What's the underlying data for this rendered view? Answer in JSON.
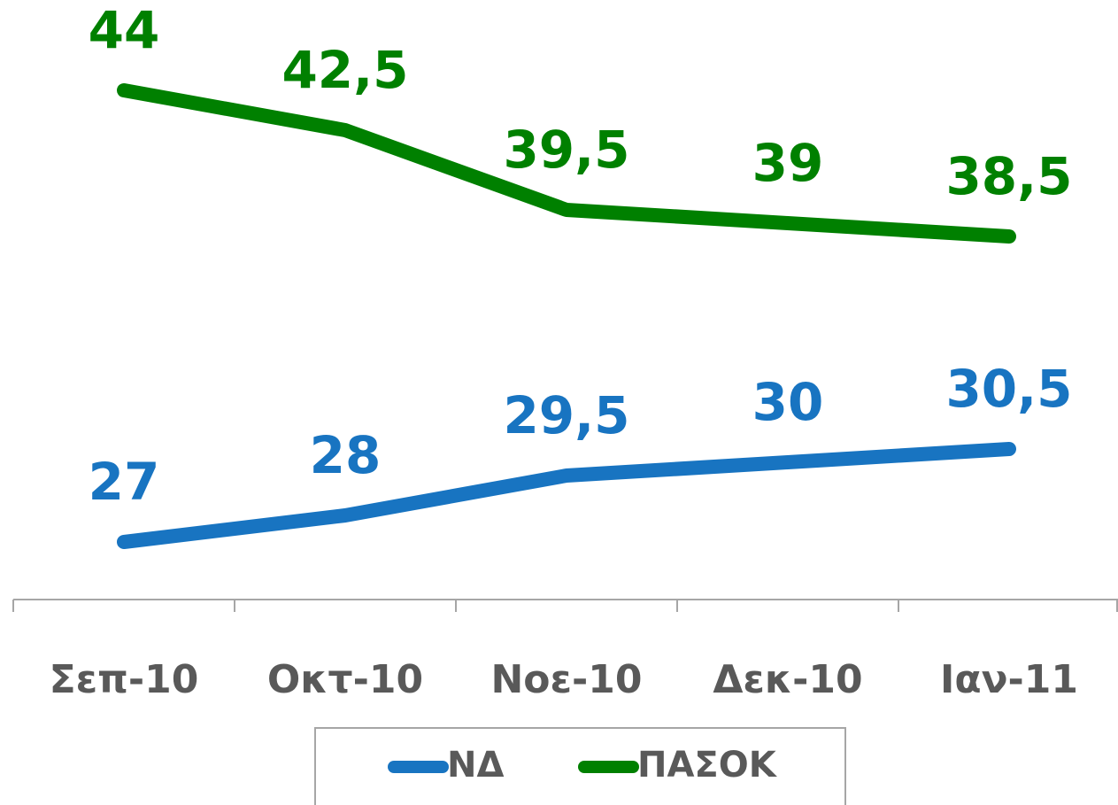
{
  "chart_data": {
    "type": "line",
    "categories": [
      "Σεπ-10",
      "Οκτ-10",
      "Νοε-10",
      "Δεκ-10",
      "Ιαν-11"
    ],
    "series": [
      {
        "name": "ΝΔ",
        "color": "#1874c1",
        "values": [
          27,
          28,
          29.5,
          30,
          30.5
        ],
        "value_labels": [
          "27",
          "28",
          "29,5",
          "30",
          "30,5"
        ]
      },
      {
        "name": "ΠΑΣΟΚ",
        "color": "#008000",
        "values": [
          44,
          42.5,
          39.5,
          39,
          38.5
        ],
        "value_labels": [
          "44",
          "42,5",
          "39,5",
          "39",
          "38,5"
        ]
      }
    ],
    "legend": "bottom"
  }
}
